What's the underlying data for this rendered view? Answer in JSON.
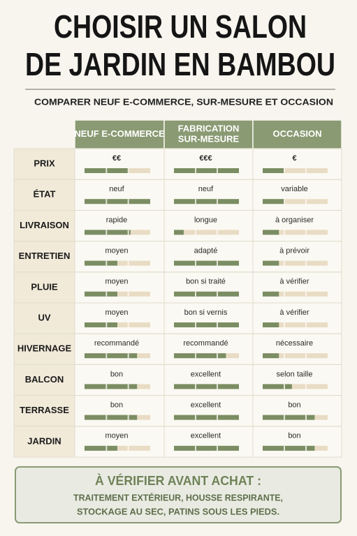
{
  "header": {
    "title": [
      "CHOISIR UN SALON",
      "DE JARDIN EN BAMBOU"
    ],
    "subtitle": "COMPARER NEUF E-COMMERCE, SUR-MESURE ET OCCASION"
  },
  "table": {
    "columns": [
      [
        "NEUF E-COMMERCE"
      ],
      [
        "FABRICATION",
        "SUR-MESURE"
      ],
      [
        "OCCASION"
      ]
    ],
    "rows": [
      {
        "label": "PRIX",
        "cells": [
          {
            "text": "€€",
            "level": 0.67
          },
          {
            "text": "€€€",
            "level": 1
          },
          {
            "text": "€",
            "level": 0.33
          }
        ]
      },
      {
        "label": "ÉTAT",
        "cells": [
          {
            "text": "neuf",
            "level": 1
          },
          {
            "text": "neuf",
            "level": 1
          },
          {
            "text": "variable",
            "level": 0.33
          }
        ]
      },
      {
        "label": "LIVRAISON",
        "cells": [
          {
            "text": "rapide",
            "level": 0.7
          },
          {
            "text": "longue",
            "level": 0.15
          },
          {
            "text": "à organiser",
            "level": 0.25
          }
        ]
      },
      {
        "label": "ENTRETIEN",
        "cells": [
          {
            "text": "moyen",
            "level": 0.5
          },
          {
            "text": "adapté",
            "level": 1
          },
          {
            "text": "à prévoir",
            "level": 0.25
          }
        ]
      },
      {
        "label": "PLUIE",
        "cells": [
          {
            "text": "moyen",
            "level": 0.5
          },
          {
            "text": "bon si traité",
            "level": 1
          },
          {
            "text": "à vérifier",
            "level": 0.25
          }
        ]
      },
      {
        "label": "UV",
        "cells": [
          {
            "text": "moyen",
            "level": 0.5
          },
          {
            "text": "bon si vernis",
            "level": 1
          },
          {
            "text": "à vérifier",
            "level": 0.25
          }
        ]
      },
      {
        "label": "HIVERNAGE",
        "cells": [
          {
            "text": "recommandé",
            "level": 0.8
          },
          {
            "text": "recommandé",
            "level": 0.8
          },
          {
            "text": "nécessaire",
            "level": 0.25
          }
        ]
      },
      {
        "label": "BALCON",
        "cells": [
          {
            "text": "bon",
            "level": 0.8
          },
          {
            "text": "excellent",
            "level": 1
          },
          {
            "text": "selon taille",
            "level": 0.45
          }
        ]
      },
      {
        "label": "TERRASSE",
        "cells": [
          {
            "text": "bon",
            "level": 0.8
          },
          {
            "text": "excellent",
            "level": 1
          },
          {
            "text": "bon",
            "level": 0.8
          }
        ]
      },
      {
        "label": "JARDIN",
        "cells": [
          {
            "text": "moyen",
            "level": 0.5
          },
          {
            "text": "excellent",
            "level": 1
          },
          {
            "text": "bon",
            "level": 0.8
          }
        ]
      }
    ]
  },
  "note": {
    "title": "À VÉRIFIER AVANT ACHAT :",
    "lines": [
      "TRAITEMENT EXTÉRIEUR, HOUSSE RESPIRANTE,",
      "STOCKAGE AU SEC, PATINS SOUS LES PIEDS."
    ]
  }
}
